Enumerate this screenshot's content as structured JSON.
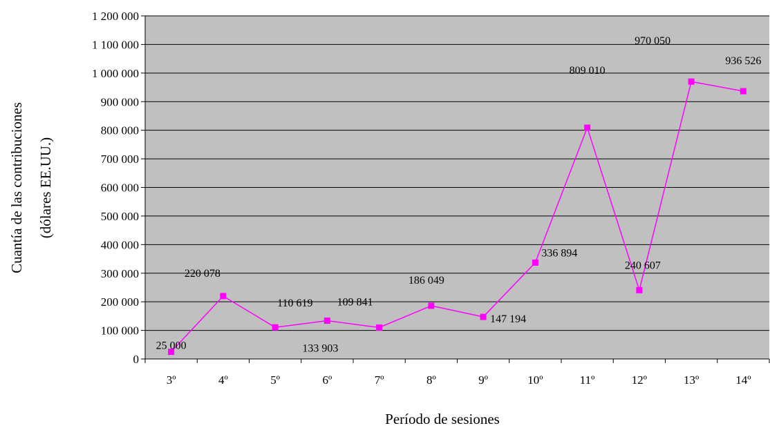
{
  "chart_data": {
    "type": "line",
    "xlabel": "Período de sesiones",
    "ylabel": [
      "Cuantía de las contribuciones",
      "(dólares EE.UU.)"
    ],
    "categories": [
      "3º",
      "4º",
      "5º",
      "6º",
      "7º",
      "8º",
      "9º",
      "10º",
      "11º",
      "12º",
      "13º",
      "14º"
    ],
    "series": [
      {
        "values": [
          25000,
          220078,
          110619,
          133903,
          109841,
          186049,
          147194,
          336894,
          809010,
          240607,
          970050,
          936526
        ],
        "labels": [
          "25 000",
          "220 078",
          "110 619",
          "133 903",
          "109 841",
          "186 049",
          "147 194",
          "336 894",
          "809 010",
          "240 607",
          "970 050",
          "936 526"
        ]
      }
    ],
    "ylim": [
      0,
      1200000
    ],
    "yticks": [
      0,
      100000,
      200000,
      300000,
      400000,
      500000,
      600000,
      700000,
      800000,
      900000,
      1000000,
      1100000,
      1200000
    ],
    "ytick_labels": [
      "0",
      "100 000",
      "200 000",
      "300 000",
      "400 000",
      "500 000",
      "600 000",
      "700 000",
      "800 000",
      "900 000",
      "1 000 000",
      "1 100 000",
      "1 200 000"
    ],
    "grid": true,
    "colors": {
      "plot_background": "#c0c0c0",
      "series": "#ff00ff",
      "grid": "#000000"
    }
  }
}
